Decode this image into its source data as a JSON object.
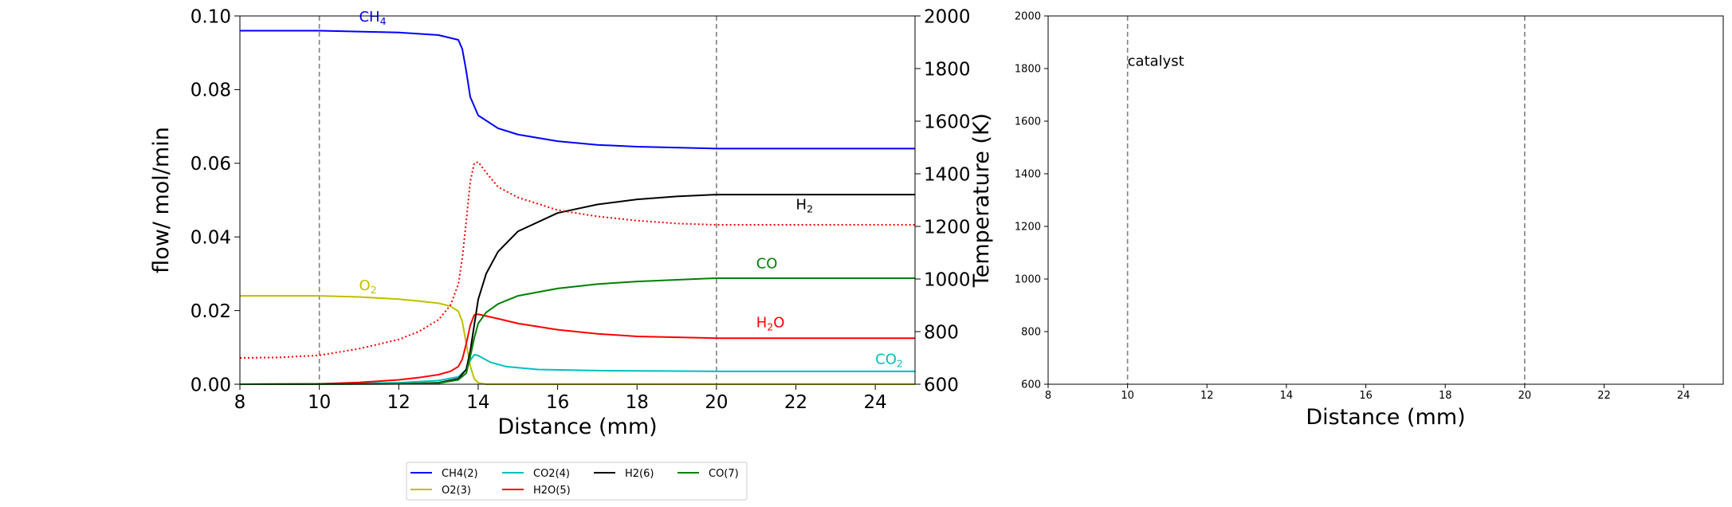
{
  "chart_data": [
    {
      "type": "line",
      "xlabel": "Distance (mm)",
      "ylabel": "flow/ mol/min",
      "y2label": "Temperature (K)",
      "xlim": [
        8,
        25
      ],
      "ylim": [
        0,
        0.1
      ],
      "y2lim": [
        600,
        2000
      ],
      "xticks": [
        "8",
        "10",
        "12",
        "14",
        "16",
        "18",
        "20",
        "22",
        "24"
      ],
      "yticks": [
        "0.00",
        "0.02",
        "0.04",
        "0.06",
        "0.08",
        "0.10"
      ],
      "y2ticks": [
        "600",
        "800",
        "1000",
        "1200",
        "1400",
        "1600",
        "1800",
        "2000"
      ],
      "vlines": [
        10,
        20
      ],
      "annotations": [
        {
          "base": "CH",
          "sub": "4",
          "color": "#0000ff",
          "x": 11.0,
          "y": 0.0985
        },
        {
          "base": "H",
          "sub": "2",
          "color": "#000000",
          "x": 22.0,
          "y": 0.0475
        },
        {
          "base": "CO",
          "sub": "",
          "color": "#008000",
          "x": 21.0,
          "y": 0.0315
        },
        {
          "base": "O",
          "sub": "2",
          "color": "#bfbf00",
          "x": 11.0,
          "y": 0.0255
        },
        {
          "base": "H",
          "sub": "2",
          "tail": "O",
          "color": "#ff0000",
          "x": 21.0,
          "y": 0.0155
        },
        {
          "base": "CO",
          "sub": "2",
          "color": "#00bfbf",
          "x": 24.0,
          "y": 0.0055
        }
      ],
      "series": [
        {
          "name": "CH4(2)",
          "color": "#0000ff",
          "x": [
            8,
            10,
            12,
            13,
            13.5,
            13.6,
            13.7,
            13.8,
            14.0,
            14.5,
            15,
            16,
            17,
            18,
            20,
            25
          ],
          "y": [
            0.096,
            0.096,
            0.0955,
            0.0948,
            0.0935,
            0.091,
            0.085,
            0.078,
            0.073,
            0.0695,
            0.0678,
            0.066,
            0.065,
            0.0645,
            0.064,
            0.064
          ]
        },
        {
          "name": "O2(3)",
          "color": "#bfbf00",
          "x": [
            8,
            10,
            11,
            12,
            12.5,
            13,
            13.3,
            13.5,
            13.6,
            13.7,
            13.8,
            13.9,
            14.0,
            14.2,
            25
          ],
          "y": [
            0.024,
            0.024,
            0.0237,
            0.0231,
            0.0226,
            0.022,
            0.0212,
            0.0198,
            0.017,
            0.011,
            0.005,
            0.0015,
            0.0004,
            0.0,
            0.0
          ]
        },
        {
          "name": "CO2(4)",
          "color": "#00bfbf",
          "x": [
            8,
            10,
            12,
            13,
            13.5,
            13.7,
            13.8,
            13.9,
            14.0,
            14.3,
            14.7,
            15.5,
            17,
            20,
            25
          ],
          "y": [
            0,
            0.0001,
            0.0004,
            0.001,
            0.002,
            0.004,
            0.0065,
            0.008,
            0.0078,
            0.006,
            0.0048,
            0.004,
            0.0037,
            0.0035,
            0.0035
          ]
        },
        {
          "name": "H2O(5)",
          "color": "#ff0000",
          "x": [
            8,
            10,
            11,
            12,
            12.5,
            13,
            13.3,
            13.5,
            13.6,
            13.7,
            13.8,
            13.9,
            14.0,
            14.5,
            15,
            16,
            17,
            18,
            20,
            25
          ],
          "y": [
            0,
            0.0001,
            0.0005,
            0.0012,
            0.0018,
            0.0026,
            0.0035,
            0.0048,
            0.0068,
            0.011,
            0.016,
            0.0188,
            0.019,
            0.0178,
            0.0165,
            0.0148,
            0.0137,
            0.013,
            0.0125,
            0.0125
          ]
        },
        {
          "name": "H2(6)",
          "color": "#000000",
          "x": [
            8,
            12,
            13,
            13.5,
            13.7,
            13.8,
            13.9,
            14.0,
            14.2,
            14.5,
            15,
            16,
            17,
            18,
            19,
            20,
            25
          ],
          "y": [
            0,
            0.0001,
            0.0004,
            0.0015,
            0.004,
            0.009,
            0.016,
            0.023,
            0.03,
            0.036,
            0.0415,
            0.0465,
            0.0488,
            0.0502,
            0.051,
            0.0515,
            0.0515
          ]
        },
        {
          "name": "CO(7)",
          "color": "#008000",
          "x": [
            8,
            12,
            13,
            13.5,
            13.7,
            13.8,
            13.9,
            14.0,
            14.2,
            14.5,
            15,
            16,
            17,
            18,
            20,
            25
          ],
          "y": [
            0,
            0.0001,
            0.0003,
            0.0012,
            0.003,
            0.0075,
            0.0125,
            0.0165,
            0.0195,
            0.0218,
            0.024,
            0.026,
            0.0272,
            0.0279,
            0.0288,
            0.0288
          ]
        },
        {
          "name": "Temperature",
          "color": "#ff0000",
          "dash": "dotted",
          "axis": "y2",
          "x": [
            8,
            9,
            10,
            11,
            12,
            12.5,
            13,
            13.3,
            13.5,
            13.6,
            13.7,
            13.8,
            13.9,
            14.0,
            14.2,
            14.5,
            15,
            16,
            17,
            18,
            19,
            20,
            25
          ],
          "y": [
            700,
            702,
            710,
            735,
            770,
            800,
            845,
            900,
            980,
            1080,
            1220,
            1370,
            1440,
            1445,
            1405,
            1350,
            1310,
            1262,
            1238,
            1222,
            1211,
            1206,
            1206
          ]
        }
      ]
    },
    {
      "type": "line",
      "xlabel": "Distance (mm)",
      "ylabel": "",
      "xlim": [
        8,
        25
      ],
      "ylim": [
        600,
        2000
      ],
      "xticks": [
        "8",
        "10",
        "12",
        "14",
        "16",
        "18",
        "20",
        "22",
        "24"
      ],
      "yticks": [
        "600",
        "800",
        "1000",
        "1200",
        "1400",
        "1600",
        "1800",
        "2000"
      ],
      "vlines": [
        10,
        20
      ],
      "annotations": [
        {
          "base": "catalyst",
          "sub": "",
          "color": "#000000",
          "x": 10.0,
          "y": 1810
        }
      ],
      "series": []
    }
  ],
  "legend": {
    "placement": "bottom-center",
    "entries": [
      {
        "label": "CH4(2)",
        "color": "#0000ff"
      },
      {
        "label": "CO2(4)",
        "color": "#00bfbf"
      },
      {
        "label": "H2(6)",
        "color": "#000000"
      },
      {
        "label": "CO(7)",
        "color": "#008000"
      },
      {
        "label": "O2(3)",
        "color": "#bfbf00"
      },
      {
        "label": "H2O(5)",
        "color": "#ff0000"
      }
    ]
  }
}
